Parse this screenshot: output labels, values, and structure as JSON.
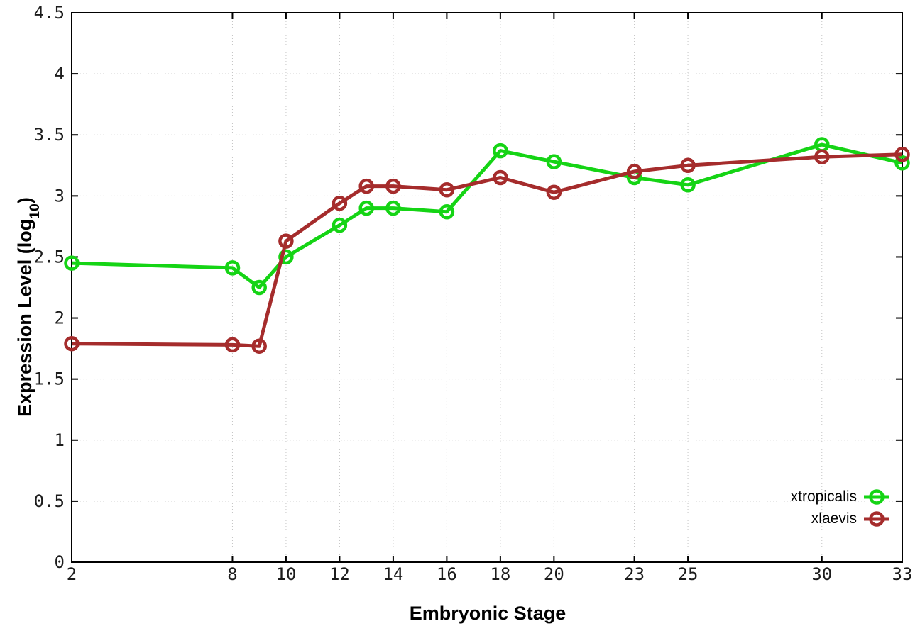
{
  "chart_data": {
    "type": "line",
    "title": "",
    "xlabel": "Embryonic Stage",
    "ylabel": "Expression Level (log10)",
    "ylabel_text": "Expression Level (log",
    "ylabel_sub": "10",
    "ylabel_suffix": ")",
    "x": [
      2,
      8,
      9,
      10,
      12,
      13,
      14,
      16,
      18,
      20,
      23,
      25,
      30,
      33
    ],
    "series": [
      {
        "name": "xtropicalis",
        "color": "#15d415",
        "values": [
          2.45,
          2.41,
          2.25,
          2.5,
          2.76,
          2.9,
          2.9,
          2.87,
          3.37,
          3.28,
          3.15,
          3.09,
          3.42,
          3.27
        ]
      },
      {
        "name": "xlaevis",
        "color": "#a52c2c",
        "values": [
          1.79,
          1.78,
          1.77,
          2.63,
          2.94,
          3.08,
          3.08,
          3.05,
          3.15,
          3.03,
          3.2,
          3.25,
          3.32,
          3.34
        ]
      }
    ],
    "xlim": [
      2,
      33
    ],
    "ylim": [
      0,
      4.5
    ],
    "xticks": [
      2,
      8,
      10,
      12,
      14,
      16,
      18,
      20,
      23,
      25,
      30,
      33
    ],
    "xtick_labels": [
      "2",
      "8",
      "10",
      "12",
      "14",
      "16",
      "18",
      "20",
      "23",
      "25",
      "30",
      "33"
    ],
    "yticks": [
      0,
      0.5,
      1,
      1.5,
      2,
      2.5,
      3,
      3.5,
      4,
      4.5
    ],
    "ytick_labels": [
      "0",
      "0.5",
      "1",
      "1.5",
      "2",
      "2.5",
      "3",
      "3.5",
      "4",
      "4.5"
    ],
    "grid": true,
    "grid_color": "#c4c4c4",
    "axis_color": "#000000",
    "marker": "open-circle",
    "legend_position": "inside-bottom-right",
    "legend_entries": [
      "xtropicalis",
      "xlaevis"
    ]
  }
}
